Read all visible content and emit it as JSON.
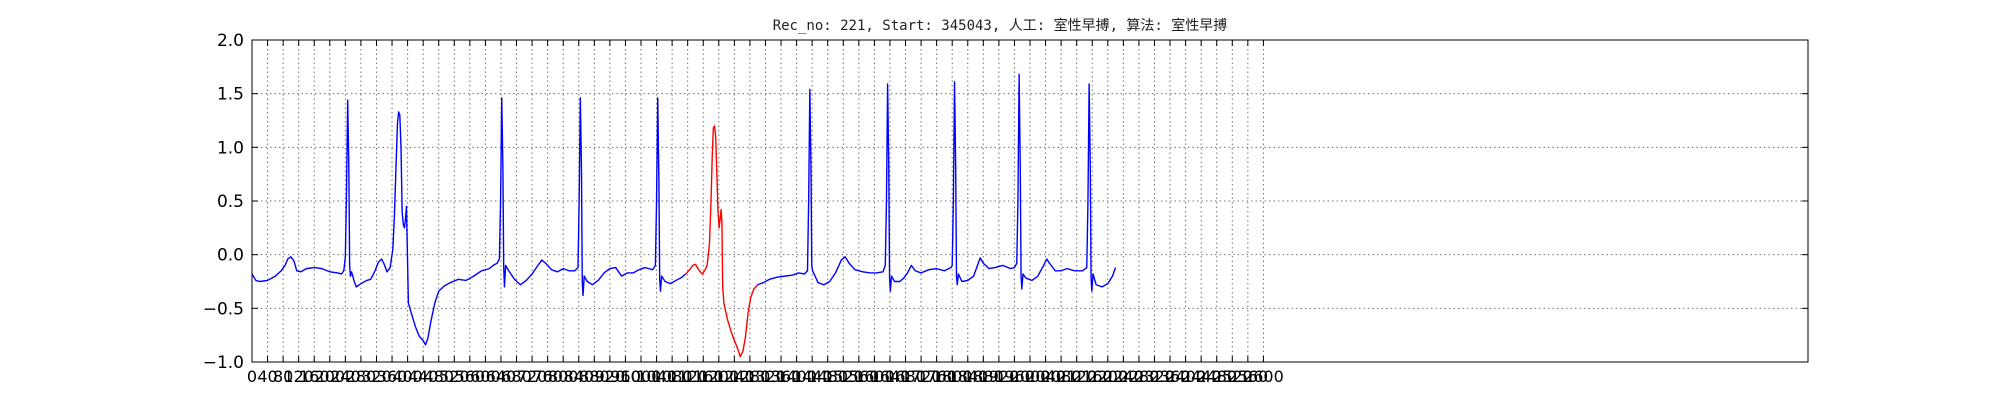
{
  "chart_data": {
    "type": "line",
    "title": "Rec_no: 221, Start: 345043, 人工: 室性早搏, 算法: 室性早搏",
    "xlabel": "",
    "ylabel": "",
    "xlim": [
      0,
      4000
    ],
    "ylim": [
      -1.0,
      2.0
    ],
    "grid": true,
    "yticks": [
      -1.0,
      -0.5,
      0.0,
      0.5,
      1.0,
      1.5,
      2.0
    ],
    "ytick_labels": [
      "−1.0",
      "−0.5",
      "0.0",
      "0.5",
      "1.0",
      "1.5",
      "2.0"
    ],
    "xticks": [
      0,
      40,
      80,
      120,
      160,
      200,
      240,
      280,
      320,
      360,
      400,
      440,
      480,
      520,
      560,
      600,
      640,
      680,
      720,
      760,
      800,
      840,
      880,
      920,
      960,
      1000,
      1040,
      1080,
      1120,
      1160,
      1200,
      1240,
      1280,
      1320,
      1360,
      1400,
      1440,
      1480,
      1520,
      1560,
      1600,
      1640,
      1680,
      1720,
      1760,
      1800,
      1840,
      1880,
      1920,
      1960,
      2000,
      2040,
      2080,
      2120,
      2160,
      2200,
      2240,
      2280,
      2320,
      2360,
      2400,
      2440,
      2480,
      2520,
      2560,
      2600
    ],
    "xtick_labels": [
      "0",
      "40",
      "80",
      "120",
      "160",
      "200",
      "240",
      "280",
      "320",
      "360",
      "400",
      "440",
      "480",
      "520",
      "560",
      "600",
      "640",
      "680",
      "720",
      "760",
      "800",
      "840",
      "880",
      "920",
      "960",
      "1000",
      "1040",
      "1080",
      "1120",
      "1160",
      "1200",
      "1240",
      "1280",
      "1320",
      "1360",
      "1400",
      "1440",
      "1480",
      "1520",
      "1560",
      "1600",
      "1640",
      "1680",
      "1720",
      "1760",
      "1800",
      "1840",
      "1880",
      "1920",
      "1960",
      "2000",
      "2040",
      "2080",
      "2120",
      "2160",
      "2200",
      "2240",
      "2280",
      "2320",
      "2360",
      "2400",
      "2440",
      "2480",
      "2520",
      "2560",
      "2600"
    ],
    "series": [
      {
        "color": "#0000ff",
        "segment": "before",
        "points": [
          [
            0,
            -0.18
          ],
          [
            10,
            -0.24
          ],
          [
            20,
            -0.25
          ],
          [
            40,
            -0.24
          ],
          [
            60,
            -0.2
          ],
          [
            75,
            -0.15
          ],
          [
            85,
            -0.1
          ],
          [
            92,
            -0.04
          ],
          [
            100,
            -0.02
          ],
          [
            108,
            -0.06
          ],
          [
            115,
            -0.15
          ],
          [
            125,
            -0.16
          ],
          [
            140,
            -0.13
          ],
          [
            160,
            -0.12
          ],
          [
            180,
            -0.13
          ],
          [
            200,
            -0.16
          ],
          [
            220,
            -0.17
          ],
          [
            230,
            -0.18
          ],
          [
            236,
            -0.15
          ],
          [
            240,
            -0.02
          ],
          [
            243,
            0.6
          ],
          [
            246,
            1.44
          ],
          [
            249,
            0.8
          ],
          [
            251,
            -0.1
          ],
          [
            253,
            -0.2
          ],
          [
            256,
            -0.16
          ],
          [
            262,
            -0.24
          ],
          [
            268,
            -0.3
          ],
          [
            280,
            -0.27
          ],
          [
            295,
            -0.24
          ],
          [
            305,
            -0.23
          ],
          [
            315,
            -0.16
          ],
          [
            325,
            -0.07
          ],
          [
            333,
            -0.04
          ],
          [
            340,
            -0.09
          ],
          [
            347,
            -0.16
          ],
          [
            355,
            -0.12
          ],
          [
            362,
            0.05
          ],
          [
            366,
            0.35
          ],
          [
            370,
            0.8
          ],
          [
            374,
            1.23
          ],
          [
            377,
            1.33
          ],
          [
            380,
            1.3
          ],
          [
            383,
            1.0
          ],
          [
            386,
            0.4
          ],
          [
            389,
            0.28
          ],
          [
            392,
            0.25
          ],
          [
            395,
            0.35
          ],
          [
            397,
            0.45
          ],
          [
            399,
            0.1
          ],
          [
            402,
            -0.45
          ],
          [
            410,
            -0.55
          ],
          [
            420,
            -0.67
          ],
          [
            430,
            -0.76
          ],
          [
            440,
            -0.8
          ],
          [
            446,
            -0.84
          ],
          [
            452,
            -0.78
          ],
          [
            460,
            -0.62
          ],
          [
            470,
            -0.45
          ],
          [
            480,
            -0.34
          ],
          [
            495,
            -0.29
          ],
          [
            510,
            -0.26
          ],
          [
            530,
            -0.23
          ],
          [
            550,
            -0.24
          ],
          [
            570,
            -0.2
          ],
          [
            590,
            -0.15
          ],
          [
            610,
            -0.13
          ],
          [
            620,
            -0.1
          ],
          [
            630,
            -0.08
          ],
          [
            636,
            -0.04
          ],
          [
            639,
            0.5
          ],
          [
            642,
            1.46
          ],
          [
            645,
            0.8
          ],
          [
            647,
            -0.1
          ],
          [
            649,
            -0.3
          ],
          [
            652,
            -0.1
          ],
          [
            660,
            -0.15
          ],
          [
            675,
            -0.23
          ],
          [
            690,
            -0.28
          ],
          [
            705,
            -0.24
          ],
          [
            720,
            -0.18
          ],
          [
            735,
            -0.1
          ],
          [
            745,
            -0.05
          ],
          [
            755,
            -0.08
          ],
          [
            770,
            -0.14
          ],
          [
            785,
            -0.16
          ],
          [
            800,
            -0.13
          ],
          [
            815,
            -0.15
          ],
          [
            830,
            -0.15
          ],
          [
            838,
            -0.12
          ],
          [
            841,
            0.5
          ],
          [
            844,
            1.46
          ],
          [
            847,
            0.8
          ],
          [
            849,
            -0.25
          ],
          [
            851,
            -0.38
          ],
          [
            854,
            -0.2
          ],
          [
            862,
            -0.25
          ],
          [
            875,
            -0.28
          ],
          [
            890,
            -0.24
          ],
          [
            905,
            -0.17
          ],
          [
            920,
            -0.13
          ],
          [
            935,
            -0.12
          ],
          [
            950,
            -0.2
          ],
          [
            965,
            -0.17
          ],
          [
            980,
            -0.17
          ],
          [
            995,
            -0.14
          ],
          [
            1010,
            -0.12
          ],
          [
            1020,
            -0.13
          ],
          [
            1030,
            -0.14
          ],
          [
            1037,
            -0.1
          ],
          [
            1040,
            0.5
          ],
          [
            1043,
            1.46
          ],
          [
            1046,
            0.7
          ],
          [
            1048,
            -0.22
          ],
          [
            1050,
            -0.34
          ],
          [
            1053,
            -0.2
          ],
          [
            1062,
            -0.25
          ],
          [
            1075,
            -0.27
          ],
          [
            1090,
            -0.24
          ],
          [
            1105,
            -0.21
          ],
          [
            1115,
            -0.18
          ]
        ]
      },
      {
        "color": "#ff0000",
        "segment": "marked",
        "points": [
          [
            1115,
            -0.18
          ],
          [
            1125,
            -0.14
          ],
          [
            1133,
            -0.1
          ],
          [
            1140,
            -0.09
          ],
          [
            1150,
            -0.15
          ],
          [
            1158,
            -0.18
          ],
          [
            1165,
            -0.14
          ],
          [
            1170,
            -0.1
          ],
          [
            1176,
            0.1
          ],
          [
            1180,
            0.5
          ],
          [
            1183,
            0.9
          ],
          [
            1186,
            1.18
          ],
          [
            1189,
            1.2
          ],
          [
            1192,
            1.1
          ],
          [
            1195,
            0.75
          ],
          [
            1198,
            0.4
          ],
          [
            1201,
            0.25
          ],
          [
            1204,
            0.35
          ],
          [
            1206,
            0.42
          ],
          [
            1208,
            0.3
          ],
          [
            1210,
            -0.3
          ],
          [
            1213,
            -0.45
          ],
          [
            1222,
            -0.6
          ],
          [
            1232,
            -0.72
          ],
          [
            1240,
            -0.8
          ],
          [
            1248,
            -0.87
          ],
          [
            1255,
            -0.95
          ],
          [
            1262,
            -0.9
          ],
          [
            1268,
            -0.78
          ],
          [
            1275,
            -0.55
          ],
          [
            1282,
            -0.4
          ],
          [
            1290,
            -0.32
          ],
          [
            1300,
            -0.28
          ]
        ]
      },
      {
        "color": "#0000ff",
        "segment": "after",
        "points": [
          [
            1300,
            -0.28
          ],
          [
            1315,
            -0.26
          ],
          [
            1330,
            -0.23
          ],
          [
            1350,
            -0.21
          ],
          [
            1370,
            -0.2
          ],
          [
            1390,
            -0.19
          ],
          [
            1405,
            -0.17
          ],
          [
            1420,
            -0.18
          ],
          [
            1428,
            -0.15
          ],
          [
            1431,
            0.5
          ],
          [
            1434,
            1.54
          ],
          [
            1437,
            0.8
          ],
          [
            1439,
            -0.1
          ],
          [
            1441,
            -0.15
          ],
          [
            1445,
            -0.18
          ],
          [
            1455,
            -0.26
          ],
          [
            1470,
            -0.28
          ],
          [
            1485,
            -0.25
          ],
          [
            1500,
            -0.17
          ],
          [
            1515,
            -0.05
          ],
          [
            1525,
            -0.02
          ],
          [
            1535,
            -0.08
          ],
          [
            1550,
            -0.14
          ],
          [
            1570,
            -0.16
          ],
          [
            1590,
            -0.17
          ],
          [
            1605,
            -0.17
          ],
          [
            1622,
            -0.16
          ],
          [
            1628,
            -0.1
          ],
          [
            1631,
            0.5
          ],
          [
            1634,
            1.59
          ],
          [
            1637,
            0.8
          ],
          [
            1639,
            -0.22
          ],
          [
            1641,
            -0.34
          ],
          [
            1644,
            -0.2
          ],
          [
            1652,
            -0.25
          ],
          [
            1665,
            -0.25
          ],
          [
            1675,
            -0.22
          ],
          [
            1685,
            -0.17
          ],
          [
            1695,
            -0.1
          ],
          [
            1705,
            -0.15
          ],
          [
            1720,
            -0.17
          ],
          [
            1740,
            -0.14
          ],
          [
            1760,
            -0.13
          ],
          [
            1780,
            -0.15
          ],
          [
            1797,
            -0.12
          ],
          [
            1800,
            -0.1
          ],
          [
            1803,
            0.5
          ],
          [
            1806,
            1.61
          ],
          [
            1809,
            0.8
          ],
          [
            1811,
            -0.2
          ],
          [
            1813,
            -0.28
          ],
          [
            1816,
            -0.18
          ],
          [
            1825,
            -0.25
          ],
          [
            1840,
            -0.24
          ],
          [
            1855,
            -0.2
          ],
          [
            1865,
            -0.1
          ],
          [
            1872,
            -0.03
          ],
          [
            1880,
            -0.08
          ],
          [
            1895,
            -0.13
          ],
          [
            1910,
            -0.12
          ],
          [
            1930,
            -0.1
          ],
          [
            1950,
            -0.13
          ],
          [
            1960,
            -0.12
          ],
          [
            1966,
            -0.08
          ],
          [
            1969,
            0.5
          ],
          [
            1972,
            1.68
          ],
          [
            1975,
            0.8
          ],
          [
            1977,
            -0.2
          ],
          [
            1979,
            -0.32
          ],
          [
            1982,
            -0.18
          ],
          [
            1990,
            -0.22
          ],
          [
            2005,
            -0.24
          ],
          [
            2020,
            -0.2
          ],
          [
            2035,
            -0.1
          ],
          [
            2043,
            -0.04
          ],
          [
            2050,
            -0.08
          ],
          [
            2065,
            -0.15
          ],
          [
            2080,
            -0.15
          ],
          [
            2095,
            -0.13
          ],
          [
            2115,
            -0.15
          ],
          [
            2135,
            -0.15
          ],
          [
            2146,
            -0.12
          ],
          [
            2149,
            0.5
          ],
          [
            2152,
            1.59
          ],
          [
            2155,
            0.8
          ],
          [
            2157,
            -0.22
          ],
          [
            2159,
            -0.34
          ],
          [
            2162,
            -0.18
          ],
          [
            2170,
            -0.28
          ],
          [
            2185,
            -0.3
          ],
          [
            2200,
            -0.27
          ],
          [
            2212,
            -0.2
          ],
          [
            2220,
            -0.12
          ]
        ]
      }
    ]
  }
}
